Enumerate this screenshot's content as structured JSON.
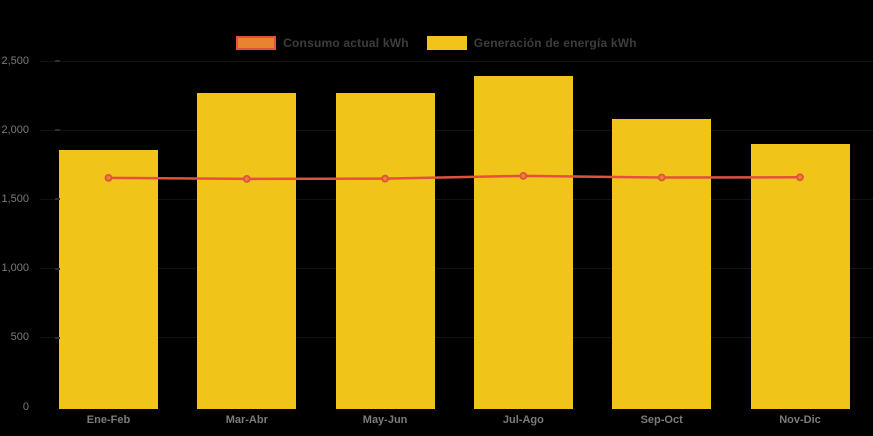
{
  "legend": {
    "items": [
      {
        "label": "Consumo actual kWh",
        "swatch_fill": "#e8832e",
        "swatch_border": "#e25044"
      },
      {
        "label": "Generación de energía kWh",
        "swatch_fill": "#f0c419",
        "swatch_border": "#f0c419"
      }
    ],
    "text_color": "#3d3d3d"
  },
  "chart_data": {
    "type": "bar",
    "title": "",
    "categories": [
      "Ene-Feb",
      "Mar-Abr",
      "May-Jun",
      "Jul-Ago",
      "Sep-Oct",
      "Nov-Dic"
    ],
    "series": [
      {
        "name": "Generación de energía kWh",
        "type": "bar",
        "color": "#f0c419",
        "values": [
          1860,
          2270,
          2270,
          2395,
          2080,
          1900
        ]
      },
      {
        "name": "Consumo actual kWh",
        "type": "line",
        "color": "#e25044",
        "marker_fill": "#e8832e",
        "marker_stroke": "#e25044",
        "values": [
          1655,
          1648,
          1650,
          1670,
          1658,
          1660
        ]
      }
    ],
    "ylabel": "",
    "xlabel": "",
    "ylim": [
      0,
      2500
    ],
    "ytick_values": [
      0,
      500,
      1000,
      1500,
      2000,
      2500
    ],
    "ytick_labels": [
      "0",
      "500",
      "1,000",
      "1,500",
      "2,000",
      "2,500"
    ],
    "grid": false,
    "legend_position": "top-center",
    "axis_text_color": "#7b7b7b",
    "background_color": "#000000"
  }
}
